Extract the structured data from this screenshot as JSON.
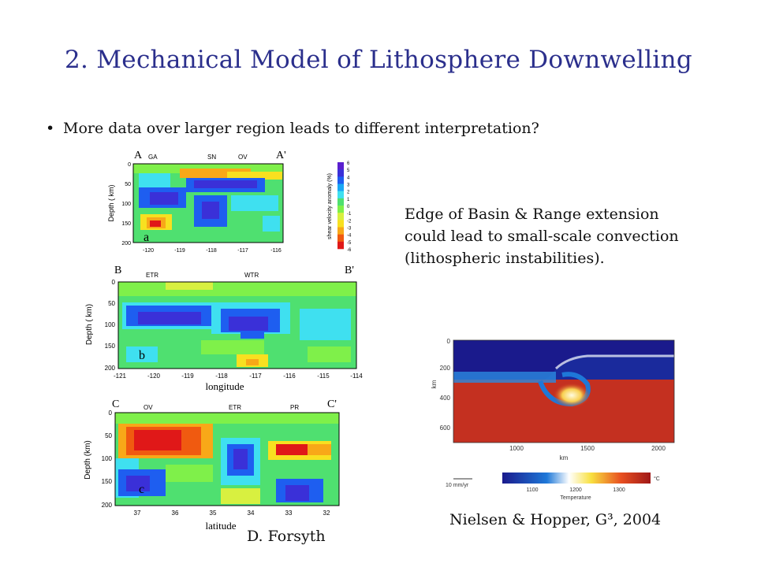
{
  "slide": {
    "title": "2. Mechanical Model of Lithosphere Downwelling",
    "bullet": "More data over larger region leads to different interpretation?",
    "note": "Edge of Basin & Range extension\ncould lead to small-scale convection\n(lithospheric instabilities).",
    "credit_left": "D. Forsyth",
    "credit_right": "Nielsen & Hopper, G³, 2004"
  },
  "panels": {
    "a": {
      "letter": "a",
      "start": "A",
      "end": "A'",
      "markers": [
        "GA",
        "SN",
        "OV"
      ],
      "ylabel": "Depth ( km)",
      "yticks": [
        "0",
        "50",
        "100",
        "150",
        "200"
      ],
      "xticks": [
        "-120",
        "-119",
        "-118",
        "-117",
        "-116"
      ]
    },
    "b": {
      "letter": "b",
      "start": "B",
      "end": "B'",
      "markers": [
        "ETR",
        "WTR"
      ],
      "ylabel": "Depth ( km)",
      "yticks": [
        "0",
        "50",
        "100",
        "150",
        "200"
      ],
      "xticks": [
        "-121",
        "-120",
        "-119",
        "-118",
        "-117",
        "-116",
        "-115",
        "-114"
      ],
      "xlabel": "longitude"
    },
    "c": {
      "letter": "c",
      "start": "C",
      "end": "C'",
      "markers": [
        "OV",
        "ETR",
        "PR"
      ],
      "ylabel": "Depth (km)",
      "yticks": [
        "0",
        "50",
        "100",
        "150",
        "200"
      ],
      "xticks": [
        "37",
        "36",
        "35",
        "34",
        "33",
        "32"
      ],
      "xlabel": "latitude"
    }
  },
  "colorbar": {
    "label": "shear velocity anomaly (%)",
    "ticks": [
      "6",
      "5",
      "4",
      "3",
      "2",
      "1",
      "0",
      "-1",
      "-2",
      "-3",
      "-4",
      "-5",
      "-6"
    ],
    "colors": [
      "#5a1fcf",
      "#3a30d8",
      "#1e5ef0",
      "#1aa8f5",
      "#3fe0f0",
      "#4fe070",
      "#7ff04a",
      "#d8f040",
      "#f8e020",
      "#f8a818",
      "#f05a10",
      "#e01818"
    ]
  },
  "model": {
    "yaxis_label": "km",
    "yticks": [
      "0",
      "200",
      "400",
      "600"
    ],
    "xticks": [
      "1000",
      "1500",
      "2000"
    ],
    "xlabel": "km",
    "arrow_label": "10 mm/yr",
    "bar_ticks": [
      "1100",
      "1200",
      "1300"
    ],
    "bar_unit": "°C",
    "bar_label": "Temperature"
  }
}
